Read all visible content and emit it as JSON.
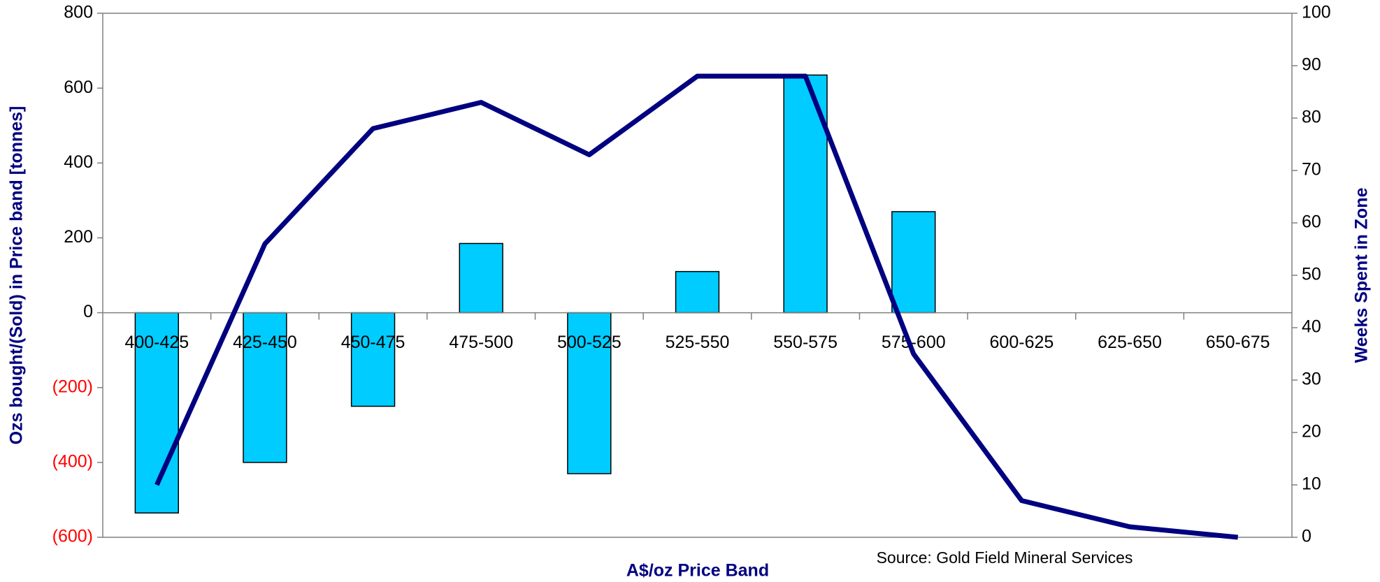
{
  "chart_data": {
    "type": "bar_line",
    "categories": [
      "400-425",
      "425-450",
      "450-475",
      "475-500",
      "500-525",
      "525-550",
      "550-575",
      "575-600",
      "600-625",
      "625-650",
      "650-675"
    ],
    "series": [
      {
        "name": "Ozs bought/(Sold) in Price band [tonnes]",
        "type": "bar",
        "color": "#00ccff",
        "values": [
          -535,
          -400,
          -250,
          185,
          -430,
          110,
          635,
          270,
          0,
          0,
          0
        ]
      },
      {
        "name": "Weeks Spent in Zone",
        "type": "line",
        "axis": "y2",
        "color": "#000080",
        "values": [
          10,
          56,
          78,
          83,
          73,
          88,
          88,
          35,
          7,
          2,
          0
        ]
      }
    ],
    "ylabel": "Ozs bought/(Sold) in Price band [tonnes]",
    "y2label": "Weeks Spent in Zone",
    "xlabel": "A$/oz Price Band",
    "source": "Source: Gold Field Mineral Services",
    "ylim": [
      -600,
      800
    ],
    "yticks": [
      {
        "value": -600,
        "label": "(600)"
      },
      {
        "value": -400,
        "label": "(400)"
      },
      {
        "value": -200,
        "label": "(200)"
      },
      0,
      200,
      400,
      600,
      800
    ],
    "negative_tick_color": "#ff0000",
    "y2lim": [
      0,
      100
    ],
    "y2ticks": [
      0,
      10,
      20,
      30,
      40,
      50,
      60,
      70,
      80,
      90,
      100
    ]
  }
}
